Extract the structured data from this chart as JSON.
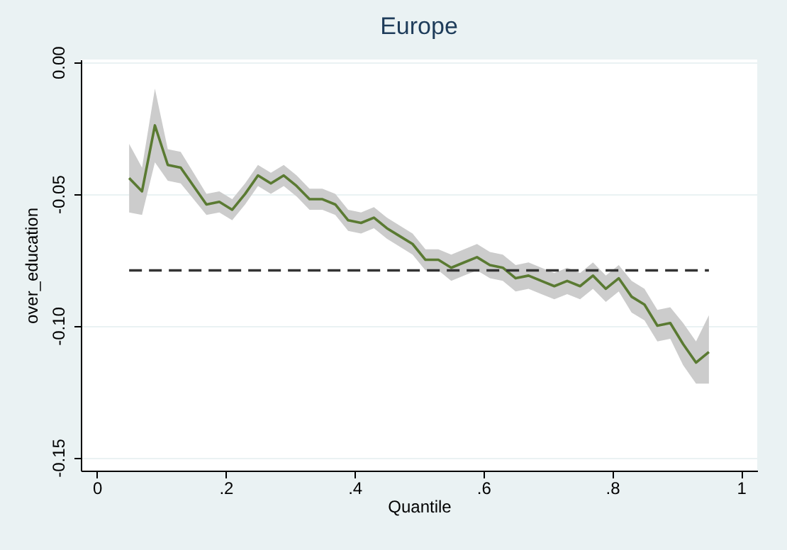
{
  "chart_data": {
    "type": "line",
    "title": "Europe",
    "xlabel": "Quantile",
    "ylabel": "over_education",
    "x": [
      0.05,
      0.07,
      0.09,
      0.11,
      0.13,
      0.15,
      0.17,
      0.19,
      0.21,
      0.23,
      0.25,
      0.27,
      0.29,
      0.31,
      0.33,
      0.35,
      0.37,
      0.39,
      0.41,
      0.43,
      0.45,
      0.47,
      0.49,
      0.51,
      0.53,
      0.55,
      0.57,
      0.59,
      0.61,
      0.63,
      0.65,
      0.67,
      0.69,
      0.71,
      0.73,
      0.75,
      0.77,
      0.79,
      0.81,
      0.83,
      0.85,
      0.87,
      0.89,
      0.91,
      0.93,
      0.95
    ],
    "series": [
      {
        "color": "#5a7a32",
        "values": [
          -0.044,
          -0.049,
          -0.024,
          -0.039,
          -0.04,
          -0.047,
          -0.054,
          -0.053,
          -0.056,
          -0.05,
          -0.043,
          -0.046,
          -0.043,
          -0.047,
          -0.052,
          -0.052,
          -0.054,
          -0.06,
          -0.061,
          -0.059,
          -0.063,
          -0.066,
          -0.069,
          -0.075,
          -0.075,
          -0.078,
          -0.076,
          -0.074,
          -0.077,
          -0.078,
          -0.082,
          -0.081,
          -0.083,
          -0.085,
          -0.083,
          -0.085,
          -0.081,
          -0.086,
          -0.082,
          -0.089,
          -0.092,
          -0.1,
          -0.099,
          -0.107,
          -0.114,
          -0.11
        ],
        "lower": [
          -0.057,
          -0.058,
          -0.038,
          -0.045,
          -0.046,
          -0.052,
          -0.058,
          -0.057,
          -0.06,
          -0.054,
          -0.047,
          -0.05,
          -0.047,
          -0.051,
          -0.056,
          -0.056,
          -0.058,
          -0.064,
          -0.065,
          -0.063,
          -0.067,
          -0.07,
          -0.073,
          -0.079,
          -0.079,
          -0.083,
          -0.081,
          -0.079,
          -0.082,
          -0.083,
          -0.087,
          -0.086,
          -0.088,
          -0.09,
          -0.088,
          -0.09,
          -0.086,
          -0.091,
          -0.087,
          -0.095,
          -0.098,
          -0.106,
          -0.105,
          -0.115,
          -0.122,
          -0.122
        ],
        "upper": [
          -0.031,
          -0.04,
          -0.01,
          -0.033,
          -0.034,
          -0.042,
          -0.05,
          -0.049,
          -0.052,
          -0.046,
          -0.039,
          -0.042,
          -0.039,
          -0.043,
          -0.048,
          -0.048,
          -0.05,
          -0.056,
          -0.057,
          -0.055,
          -0.059,
          -0.062,
          -0.065,
          -0.071,
          -0.071,
          -0.073,
          -0.071,
          -0.069,
          -0.072,
          -0.073,
          -0.077,
          -0.076,
          -0.078,
          -0.08,
          -0.078,
          -0.08,
          -0.076,
          -0.081,
          -0.077,
          -0.083,
          -0.086,
          -0.094,
          -0.093,
          -0.099,
          -0.106,
          -0.096
        ]
      },
      {
        "color": "#333333",
        "line_style": "dashed",
        "x": [
          0.05,
          0.95
        ],
        "values": [
          -0.079,
          -0.079
        ]
      }
    ],
    "xlim": [
      -0.025,
      1.025
    ],
    "xticks": [
      {
        "value": 0,
        "label": "0"
      },
      {
        "value": 0.2,
        "label": ".2"
      },
      {
        "value": 0.4,
        "label": ".4"
      },
      {
        "value": 0.6,
        "label": ".6"
      },
      {
        "value": 0.8,
        "label": ".8"
      },
      {
        "value": 1,
        "label": "1"
      }
    ],
    "ylim": [
      -0.155,
      0.001
    ],
    "yticks": [
      {
        "value": 0,
        "label": "0.00"
      },
      {
        "value": -0.05,
        "label": "-0.05"
      },
      {
        "value": -0.1,
        "label": "-0.10"
      },
      {
        "value": -0.15,
        "label": "-0.15"
      }
    ],
    "grid": "y",
    "marker": "none"
  }
}
